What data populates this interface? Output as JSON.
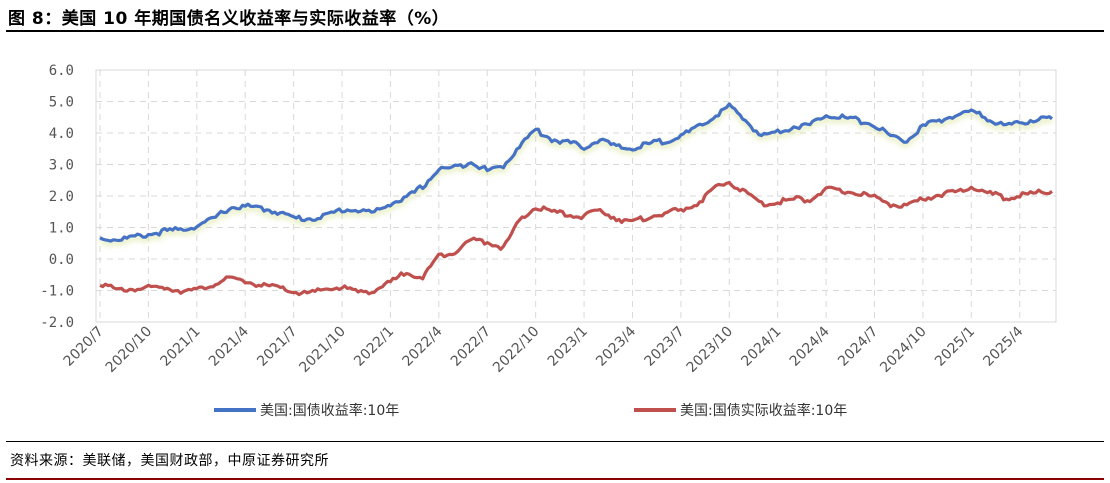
{
  "title": "图 8：美国 10 年期国债名义收益率与实际收益率（%）",
  "source": "资料来源：美联储，美国财政部，中原证券研究所",
  "chart_data": {
    "type": "line",
    "ylim": [
      -2.0,
      6.0
    ],
    "yticks": [
      "6.0",
      "5.0",
      "4.0",
      "3.0",
      "2.0",
      "1.0",
      "0.0",
      "-1.0",
      "-2.0"
    ],
    "ytick_values": [
      6,
      5,
      4,
      3,
      2,
      1,
      0,
      -1,
      -2
    ],
    "xticks": [
      "2020/7",
      "2020/10",
      "2021/1",
      "2021/4",
      "2021/7",
      "2021/10",
      "2022/1",
      "2022/4",
      "2022/7",
      "2022/10",
      "2023/1",
      "2023/4",
      "2023/7",
      "2023/10",
      "2024/1",
      "2024/4",
      "2024/7",
      "2024/10",
      "2025/1",
      "2025/4"
    ],
    "grid": true,
    "legend_position": "bottom",
    "x": [
      "2020/7",
      "2020/8",
      "2020/9",
      "2020/10",
      "2020/11",
      "2020/12",
      "2021/1",
      "2021/2",
      "2021/3",
      "2021/4",
      "2021/5",
      "2021/6",
      "2021/7",
      "2021/8",
      "2021/9",
      "2021/10",
      "2021/11",
      "2021/12",
      "2022/1",
      "2022/2",
      "2022/3",
      "2022/4",
      "2022/5",
      "2022/6",
      "2022/7",
      "2022/8",
      "2022/9",
      "2022/10",
      "2022/11",
      "2022/12",
      "2023/1",
      "2023/2",
      "2023/3",
      "2023/4",
      "2023/5",
      "2023/6",
      "2023/7",
      "2023/8",
      "2023/9",
      "2023/10",
      "2023/11",
      "2023/12",
      "2024/1",
      "2024/2",
      "2024/3",
      "2024/4",
      "2024/5",
      "2024/6",
      "2024/7",
      "2024/8",
      "2024/9",
      "2024/10",
      "2024/11",
      "2024/12",
      "2025/1",
      "2025/2",
      "2025/3",
      "2025/4",
      "2025/5",
      "2025/6"
    ],
    "series": [
      {
        "name": "美国:国债收益率:10年",
        "color": "#4472c4",
        "values": [
          0.66,
          0.62,
          0.68,
          0.78,
          0.88,
          0.93,
          1.05,
          1.26,
          1.62,
          1.67,
          1.6,
          1.5,
          1.3,
          1.28,
          1.37,
          1.57,
          1.55,
          1.47,
          1.77,
          1.93,
          2.3,
          2.85,
          2.9,
          3.1,
          2.8,
          2.95,
          3.6,
          4.1,
          3.8,
          3.7,
          3.55,
          3.8,
          3.55,
          3.5,
          3.65,
          3.75,
          3.9,
          4.15,
          4.5,
          4.85,
          4.4,
          3.9,
          4.05,
          4.2,
          4.25,
          4.6,
          4.5,
          4.4,
          4.25,
          3.9,
          3.75,
          4.2,
          4.4,
          4.55,
          4.7,
          4.45,
          4.25,
          4.3,
          4.45,
          4.45
        ]
      },
      {
        "name": "美国:国债实际收益率:10年",
        "color": "#c0504d",
        "values": [
          -0.75,
          -1.0,
          -0.95,
          -0.92,
          -0.9,
          -1.0,
          -1.0,
          -0.8,
          -0.63,
          -0.7,
          -0.85,
          -0.9,
          -1.05,
          -1.1,
          -0.95,
          -0.9,
          -1.05,
          -1.0,
          -0.75,
          -0.4,
          -0.6,
          0.1,
          0.25,
          0.6,
          0.55,
          0.35,
          1.2,
          1.65,
          1.5,
          1.4,
          1.35,
          1.55,
          1.3,
          1.15,
          1.35,
          1.45,
          1.55,
          1.75,
          2.2,
          2.45,
          2.1,
          1.75,
          1.8,
          1.9,
          1.9,
          2.2,
          2.15,
          2.1,
          1.95,
          1.75,
          1.65,
          1.9,
          2.05,
          2.1,
          2.3,
          2.1,
          1.95,
          2.0,
          2.1,
          2.15
        ]
      }
    ]
  }
}
